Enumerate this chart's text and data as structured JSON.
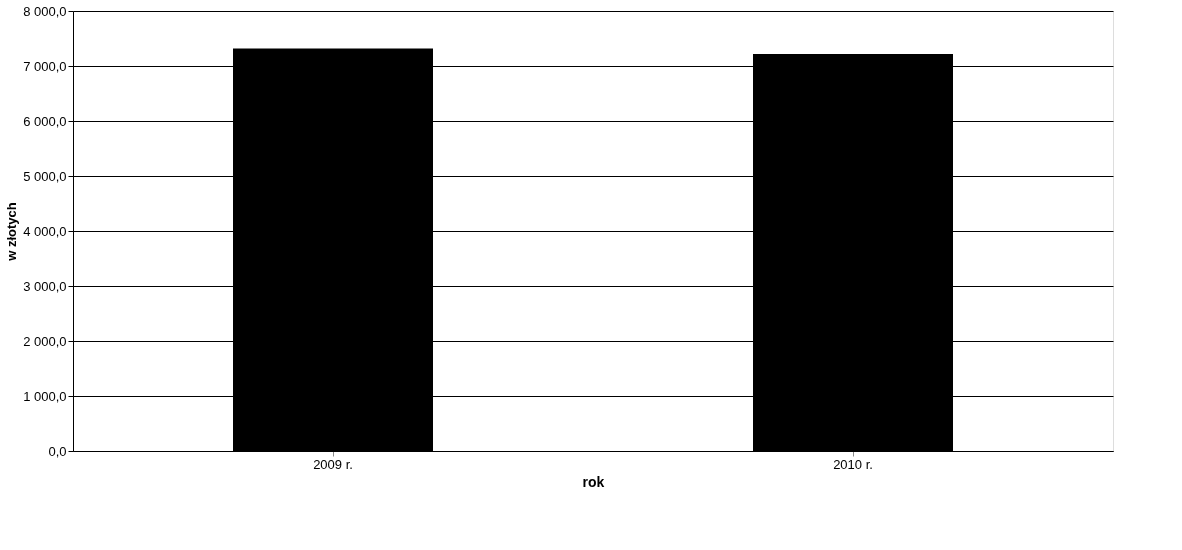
{
  "chart_data": {
    "type": "bar",
    "xlabel": "rok",
    "ylabel": "w złotych",
    "categories": [
      "2009 r.",
      "2010 r."
    ],
    "series": [
      {
        "color": "#000000",
        "values": [
          7320,
          7220
        ]
      }
    ],
    "ylim": [
      0,
      8000
    ],
    "yticks": [
      {
        "value": 0,
        "label": "0,0"
      },
      {
        "value": 1000,
        "label": "1 000,0"
      },
      {
        "value": 2000,
        "label": "2 000,0"
      },
      {
        "value": 3000,
        "label": "3 000,0"
      },
      {
        "value": 4000,
        "label": "4 000,0"
      },
      {
        "value": 5000,
        "label": "5 000,0"
      },
      {
        "value": 6000,
        "label": "6 000,0"
      },
      {
        "value": 7000,
        "label": "7 000,0"
      },
      {
        "value": 8000,
        "label": "8 000,0"
      }
    ],
    "grid": "y"
  }
}
